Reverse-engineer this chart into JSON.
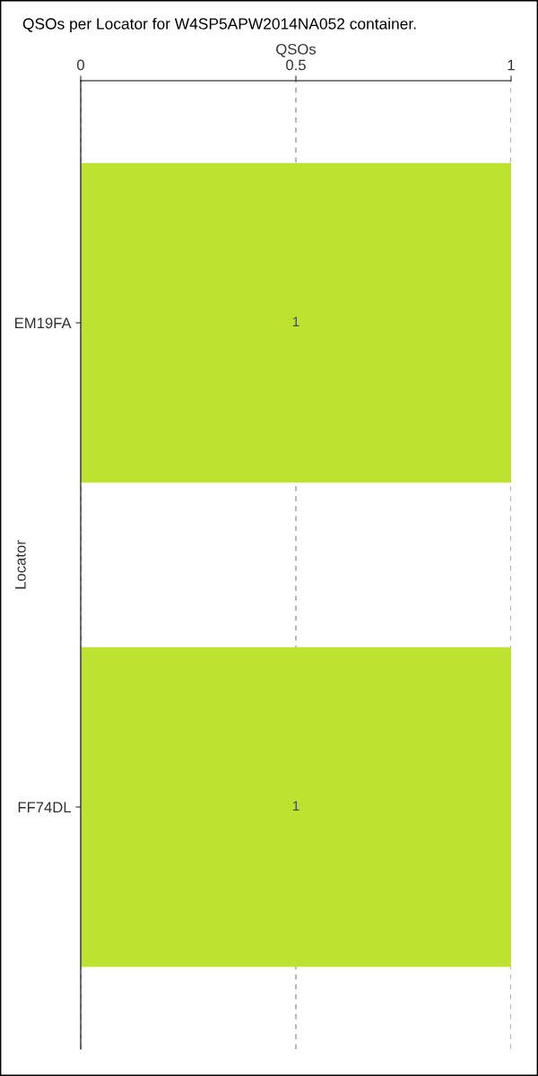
{
  "chart_data": {
    "type": "bar",
    "orientation": "horizontal",
    "title": "QSOs per Locator for W4SP5APW2014NA052 container.",
    "xlabel": "QSOs",
    "ylabel": "Locator",
    "categories": [
      "EM19FA",
      "FF74DL"
    ],
    "series": [
      {
        "color": "#bde22f",
        "values": [
          1,
          1
        ]
      }
    ],
    "xlim": [
      0,
      1
    ],
    "xticks": [
      0,
      0.5,
      1
    ],
    "grid": "x",
    "data_labels": true
  }
}
